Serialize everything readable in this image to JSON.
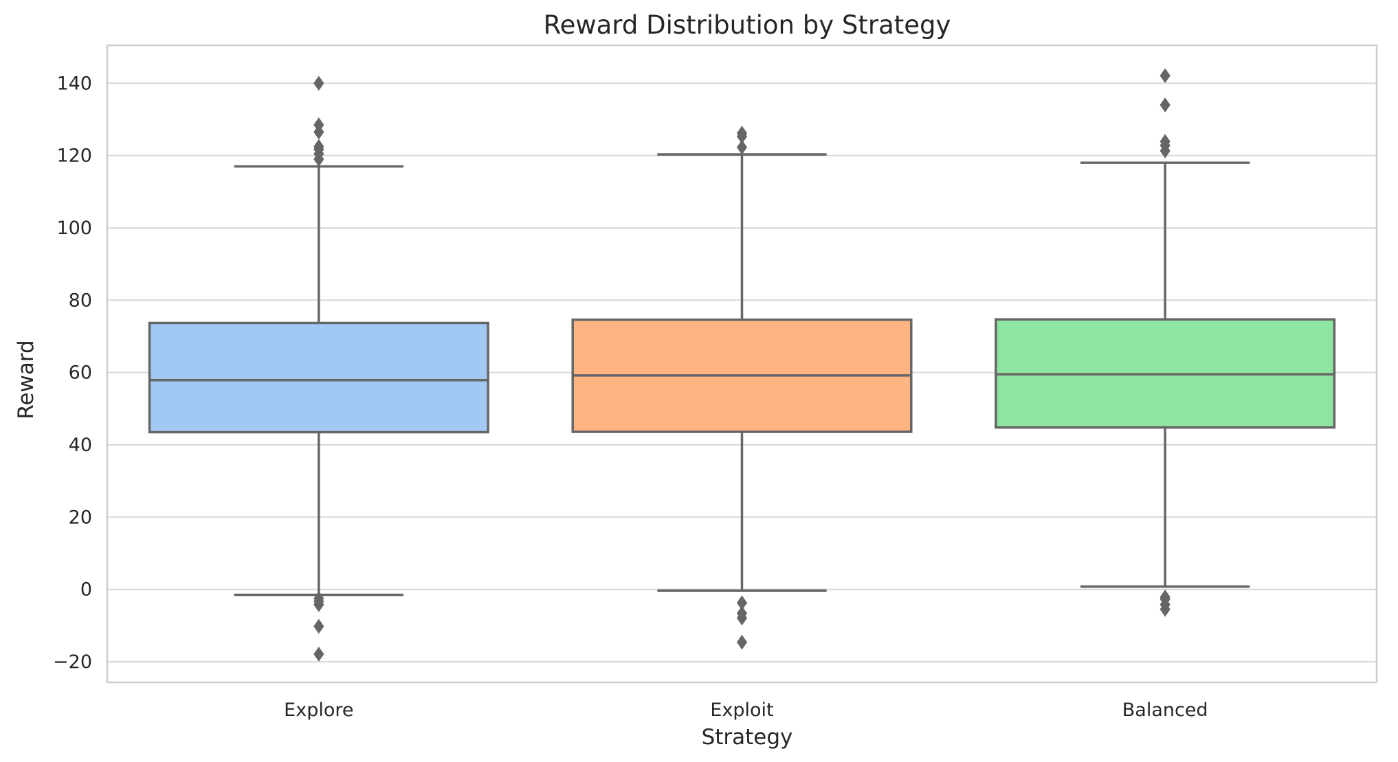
{
  "chart_data": {
    "type": "box",
    "title": "Reward Distribution by Strategy",
    "xlabel": "Strategy",
    "ylabel": "Reward",
    "ylim": [
      -25.7,
      150.5
    ],
    "yticks": [
      -20,
      0,
      20,
      40,
      60,
      80,
      100,
      120,
      140
    ],
    "ytick_labels": [
      "−20",
      "0",
      "20",
      "40",
      "60",
      "80",
      "100",
      "120",
      "140"
    ],
    "grid": true,
    "categories": [
      "Explore",
      "Exploit",
      "Balanced"
    ],
    "series": [
      {
        "category": "Explore",
        "color": "#a1c9f4",
        "whisker_low": -1.5,
        "q1": 43.5,
        "median": 57.9,
        "q3": 73.7,
        "whisker_high": 117,
        "outliers": [
          140,
          128.5,
          126.5,
          122.5,
          121.7,
          120.5,
          119,
          -2.5,
          -3.3,
          -4.2,
          -10.2,
          -17.9
        ]
      },
      {
        "category": "Exploit",
        "color": "#ffb482",
        "whisker_low": -0.3,
        "q1": 43.6,
        "median": 59.2,
        "q3": 74.6,
        "whisker_high": 120.3,
        "outliers": [
          126.2,
          125.3,
          122.3,
          -3.7,
          -6.6,
          -7.9,
          -14.6
        ]
      },
      {
        "category": "Balanced",
        "color": "#8de5a1",
        "whisker_low": 0.8,
        "q1": 44.8,
        "median": 59.5,
        "q3": 74.7,
        "whisker_high": 118,
        "outliers": [
          142.1,
          134,
          123.9,
          122.8,
          121.3,
          -2.1,
          -2.7,
          -4.2,
          -5.5
        ]
      }
    ],
    "colors": {
      "box_edge": "#666666",
      "grid": "#d9d9d9",
      "frame": "#cccccc",
      "text": "#262626"
    }
  }
}
